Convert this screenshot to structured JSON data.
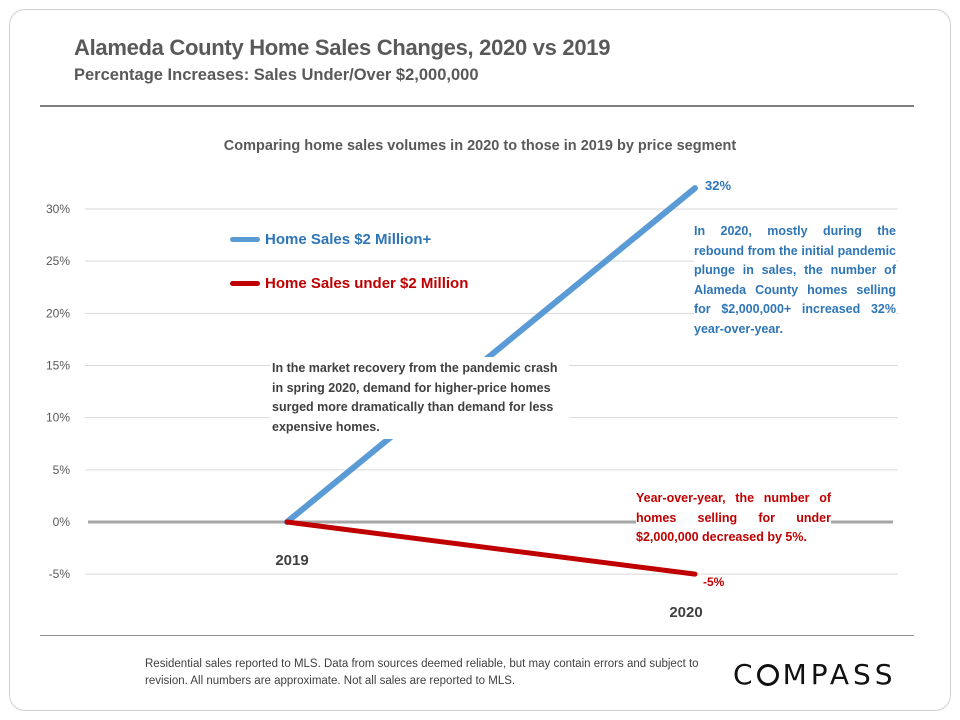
{
  "header": {
    "title": "Alameda County Home Sales Changes, 2020 vs 2019",
    "subtitle": "Percentage Increases: Sales Under/Over $2,000,000"
  },
  "chart_data": {
    "type": "line",
    "title": "Comparing home sales volumes in 2020 to those in 2019 by price segment",
    "categories": [
      "2019",
      "2020"
    ],
    "series": [
      {
        "name": "Home Sales $2 Million+",
        "values": [
          0,
          32
        ],
        "color": "#5b9bd5",
        "end_label": "32%"
      },
      {
        "name": "Home Sales under $2 Million",
        "values": [
          0,
          -5
        ],
        "color": "#c00000",
        "end_label": "-5%"
      }
    ],
    "ylim": [
      -5,
      30
    ],
    "yticks": [
      "-5%",
      "0%",
      "5%",
      "10%",
      "15%",
      "20%",
      "25%",
      "30%"
    ],
    "ytick_values": [
      -5,
      0,
      5,
      10,
      15,
      20,
      25,
      30
    ],
    "grid": true,
    "legend": "top-left",
    "annotations": {
      "blue": "In 2020, mostly during the rebound from the initial pandemic plunge in sales, the number of Alameda County homes selling for $2,000,000+ increased 32% year-over-year.",
      "red": "Year-over-year, the number of homes selling for under $2,000,000 decreased by 5%.",
      "center": "In the market recovery from the pandemic crash in spring 2020, demand for higher-price homes surged more dramatically than demand for less expensive homes."
    }
  },
  "footer": {
    "disclaimer": "Residential sales reported to MLS. Data from sources deemed reliable, but may contain errors and subject to revision. All numbers are approximate. Not all sales are reported to MLS.",
    "logo": "COMPASS"
  }
}
